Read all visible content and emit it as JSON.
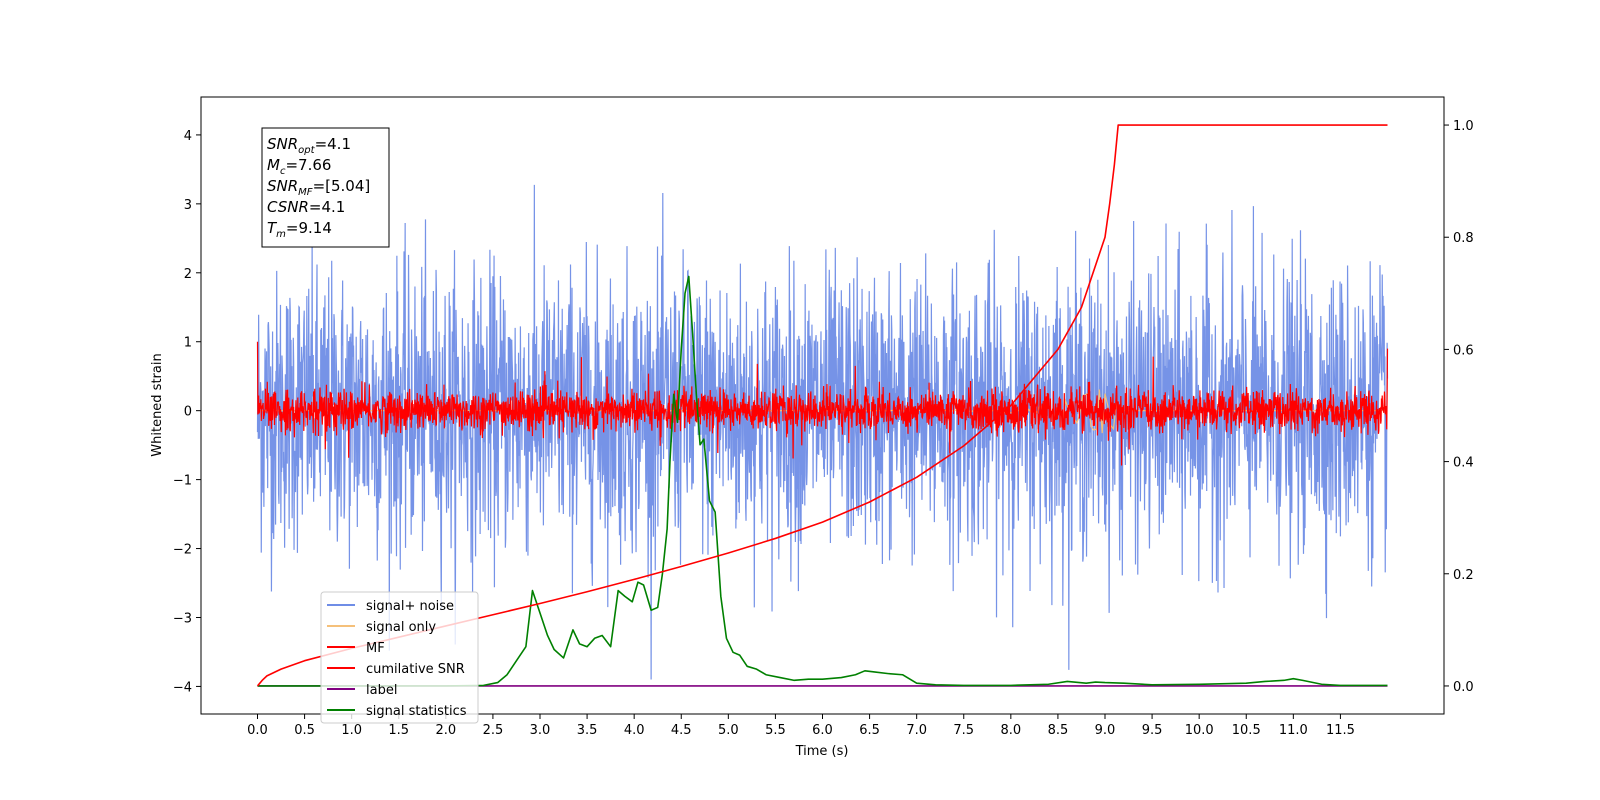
{
  "chart_data": {
    "type": "line",
    "xlabel": "Time (s)",
    "ylabel_left": "Whitened strain",
    "xlim": [
      -0.6,
      12.6
    ],
    "ylim_left": [
      -4.4,
      4.55
    ],
    "ylim_right": [
      -0.05,
      1.05
    ],
    "x_ticks": [
      0.0,
      0.5,
      1.0,
      1.5,
      2.0,
      2.5,
      3.0,
      3.5,
      4.0,
      4.5,
      5.0,
      5.5,
      6.0,
      6.5,
      7.0,
      7.5,
      8.0,
      8.5,
      9.0,
      9.5,
      10.0,
      10.5,
      11.0,
      11.5
    ],
    "x_tick_labels": [
      "0.0",
      "0.5",
      "1.0",
      "1.5",
      "2.0",
      "2.5",
      "3.0",
      "3.5",
      "4.0",
      "4.5",
      "5.0",
      "5.5",
      "6.0",
      "6.5",
      "7.0",
      "7.5",
      "8.0",
      "8.5",
      "9.0",
      "9.5",
      "10.0",
      "10.5",
      "11.0",
      "11.5"
    ],
    "y_left_ticks": [
      4,
      3,
      2,
      1,
      0,
      -1,
      -2,
      -3,
      -4
    ],
    "y_left_tick_labels": [
      "4",
      "3",
      "2",
      "1",
      "0",
      "−1",
      "−2",
      "−3",
      "−4"
    ],
    "y_right_ticks": [
      1.0,
      0.8,
      0.6,
      0.4,
      0.2,
      0.0
    ],
    "y_right_tick_labels": [
      "1.0",
      "0.8",
      "0.6",
      "0.4",
      "0.2",
      "0.0"
    ],
    "x_data_range": [
      0.0,
      12.0
    ],
    "signal_noise": {
      "name": "signal+ noise",
      "color": "#6f8de6",
      "axis": "left",
      "approx_std": 1.0,
      "approx_range": [
        -3.9,
        4.15
      ]
    },
    "signal_only": {
      "name": "signal only",
      "color": "#f5c07a",
      "axis": "left",
      "approx_peak": 0.5,
      "peak_time": 9.14
    },
    "mf": {
      "name": "MF",
      "color": "#ff0000",
      "axis": "left",
      "approx_std": 0.15,
      "start_value": 1.0,
      "end_value": 0.9
    },
    "cumulative_snr": {
      "name": "cumilative SNR",
      "color": "#ff0000",
      "axis": "right",
      "x": [
        0.0,
        0.05,
        0.1,
        0.25,
        0.5,
        1.0,
        1.5,
        2.0,
        2.5,
        3.0,
        3.5,
        4.0,
        4.5,
        5.0,
        5.5,
        6.0,
        6.5,
        7.0,
        7.5,
        8.0,
        8.5,
        8.75,
        9.0,
        9.05,
        9.1,
        9.14,
        9.5,
        10.0,
        11.0,
        12.0
      ],
      "y": [
        0.0,
        0.01,
        0.018,
        0.03,
        0.045,
        0.067,
        0.087,
        0.107,
        0.127,
        0.147,
        0.168,
        0.19,
        0.213,
        0.237,
        0.263,
        0.292,
        0.328,
        0.372,
        0.428,
        0.5,
        0.6,
        0.675,
        0.8,
        0.86,
        0.93,
        1.0,
        1.0,
        1.0,
        1.0,
        1.0
      ]
    },
    "label": {
      "name": "label",
      "color": "#800080",
      "axis": "right",
      "x": [
        0.0,
        12.0
      ],
      "y": [
        0.0,
        0.0
      ]
    },
    "signal_statistics": {
      "name": "signal statistics",
      "color": "#008000",
      "axis": "right",
      "x": [
        0.0,
        1.0,
        2.0,
        2.4,
        2.55,
        2.65,
        2.75,
        2.85,
        2.92,
        3.0,
        3.08,
        3.15,
        3.25,
        3.35,
        3.42,
        3.5,
        3.58,
        3.66,
        3.75,
        3.83,
        3.9,
        3.98,
        4.04,
        4.1,
        4.18,
        4.25,
        4.3,
        4.35,
        4.38,
        4.42,
        4.46,
        4.5,
        4.54,
        4.58,
        4.62,
        4.66,
        4.7,
        4.74,
        4.8,
        4.86,
        4.92,
        4.98,
        5.05,
        5.12,
        5.2,
        5.3,
        5.4,
        5.55,
        5.7,
        5.85,
        6.0,
        6.2,
        6.35,
        6.45,
        6.55,
        6.7,
        6.85,
        7.0,
        7.2,
        7.5,
        8.0,
        8.4,
        8.6,
        8.8,
        8.9,
        9.0,
        9.2,
        9.5,
        10.0,
        10.5,
        10.7,
        10.9,
        11.0,
        11.1,
        11.3,
        11.5,
        12.0
      ],
      "y": [
        0.0,
        0.0,
        0.0,
        0.001,
        0.006,
        0.02,
        0.045,
        0.07,
        0.17,
        0.13,
        0.09,
        0.065,
        0.05,
        0.1,
        0.075,
        0.07,
        0.085,
        0.09,
        0.07,
        0.17,
        0.16,
        0.15,
        0.185,
        0.18,
        0.135,
        0.14,
        0.2,
        0.28,
        0.4,
        0.52,
        0.47,
        0.6,
        0.7,
        0.73,
        0.63,
        0.52,
        0.43,
        0.44,
        0.33,
        0.31,
        0.16,
        0.085,
        0.06,
        0.055,
        0.035,
        0.03,
        0.02,
        0.015,
        0.01,
        0.012,
        0.012,
        0.015,
        0.02,
        0.027,
        0.025,
        0.022,
        0.02,
        0.005,
        0.002,
        0.001,
        0.001,
        0.003,
        0.008,
        0.005,
        0.007,
        0.006,
        0.005,
        0.002,
        0.003,
        0.005,
        0.008,
        0.01,
        0.013,
        0.01,
        0.003,
        0.001,
        0.001
      ]
    }
  },
  "legend": {
    "items": [
      {
        "label": "signal+ noise",
        "color": "#6f8de6"
      },
      {
        "label": "signal only",
        "color": "#f5c07a"
      },
      {
        "label": "MF",
        "color": "#ff0000"
      },
      {
        "label": "cumilative SNR",
        "color": "#ff0000"
      },
      {
        "label": "label",
        "color": "#800080"
      },
      {
        "label": "signal statistics",
        "color": "#008000"
      }
    ]
  },
  "info_box": {
    "snr_opt": {
      "base": "SNR",
      "sub": "opt",
      "value": "=4.1"
    },
    "mc": {
      "base": "M",
      "sub": "c",
      "value": "=7.66"
    },
    "snr_mf": {
      "base": "SNR",
      "sub": "MF",
      "value": "=[5.04]"
    },
    "csnr": {
      "base": "CSNR",
      "value": "=4.1"
    },
    "tm": {
      "base": "T",
      "sub": "m",
      "value": "=9.14"
    }
  }
}
